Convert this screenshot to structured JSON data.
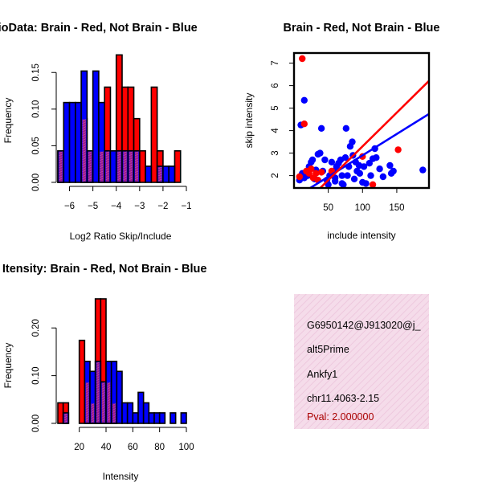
{
  "colors": {
    "brain": "#ff0000",
    "not_brain": "#0000ff",
    "overlap": "#9b1b8c",
    "info_bg": "#f5dcea",
    "pval": "#aa0000"
  },
  "chart_data": [
    {
      "id": "ratio",
      "type": "bar",
      "title": "RatioData: Brain - Red, Not Brain - Blue",
      "xlabel": "Log2 Ratio Skip/Include",
      "ylabel": "Frequency",
      "xlim": [
        -6.5,
        -1
      ],
      "ylim": [
        0,
        0.17
      ],
      "xticks": [
        -6,
        -5,
        -4,
        -3,
        -2,
        -1
      ],
      "xtick_labels": [
        "−6",
        "−5",
        "−4",
        "−3",
        "−2",
        "−1"
      ],
      "yticks": [
        0,
        0.05,
        0.1,
        0.15
      ],
      "ytick_labels": [
        "0.00",
        "0.05",
        "0.10",
        "0.15"
      ],
      "bin_width": 0.25,
      "series": [
        {
          "name": "Not Brain",
          "color": "#0000ff",
          "bins": [
            {
              "x0": -6.5,
              "v": 0.043
            },
            {
              "x0": -6.25,
              "v": 0.109
            },
            {
              "x0": -6.0,
              "v": 0.109
            },
            {
              "x0": -5.75,
              "v": 0.109
            },
            {
              "x0": -5.5,
              "v": 0.152
            },
            {
              "x0": -5.25,
              "v": 0.043
            },
            {
              "x0": -5.0,
              "v": 0.152
            },
            {
              "x0": -4.75,
              "v": 0.109
            },
            {
              "x0": -4.5,
              "v": 0.043
            },
            {
              "x0": -4.25,
              "v": 0.043
            },
            {
              "x0": -4.0,
              "v": 0.043
            },
            {
              "x0": -3.75,
              "v": 0.043
            },
            {
              "x0": -3.5,
              "v": 0.043
            },
            {
              "x0": -3.25,
              "v": 0.043
            },
            {
              "x0": -2.75,
              "v": 0.022
            },
            {
              "x0": -2.25,
              "v": 0.022
            },
            {
              "x0": -2.0,
              "v": 0.022
            },
            {
              "x0": -1.75,
              "v": 0.022
            }
          ]
        },
        {
          "name": "Brain",
          "color": "#ff0000",
          "bins": [
            {
              "x0": -6.5,
              "v": 0.043
            },
            {
              "x0": -5.5,
              "v": 0.087
            },
            {
              "x0": -5.25,
              "v": 0.043
            },
            {
              "x0": -4.75,
              "v": 0.043
            },
            {
              "x0": -4.5,
              "v": 0.13
            },
            {
              "x0": -4.0,
              "v": 0.174
            },
            {
              "x0": -3.75,
              "v": 0.13
            },
            {
              "x0": -3.5,
              "v": 0.13
            },
            {
              "x0": -3.25,
              "v": 0.087
            },
            {
              "x0": -3.0,
              "v": 0.043
            },
            {
              "x0": -2.5,
              "v": 0.13
            },
            {
              "x0": -2.25,
              "v": 0.043
            },
            {
              "x0": -1.5,
              "v": 0.043
            }
          ]
        }
      ]
    },
    {
      "id": "scatter",
      "type": "scatter",
      "title": "Brain - Red, Not Brain - Blue",
      "xlabel": "include intensity",
      "ylabel": "skip intensity",
      "xlim": [
        0,
        197
      ],
      "ylim": [
        1.45,
        7.45
      ],
      "xticks": [
        50,
        100,
        150
      ],
      "xtick_labels": [
        "50",
        "100",
        "150"
      ],
      "yticks": [
        2,
        3,
        4,
        5,
        6,
        7
      ],
      "ytick_labels": [
        "2",
        "3",
        "4",
        "5",
        "6",
        "7"
      ],
      "series": [
        {
          "name": "Not Brain",
          "color": "#0000ff",
          "fit_line": {
            "intercept": 1.0,
            "slope": 0.019
          },
          "points": [
            [
              8,
              1.8
            ],
            [
              12,
              2.1
            ],
            [
              15,
              1.9
            ],
            [
              10,
              4.25
            ],
            [
              15,
              5.35
            ],
            [
              20,
              2.0
            ],
            [
              22,
              2.4
            ],
            [
              25,
              2.6
            ],
            [
              27,
              2.7
            ],
            [
              30,
              1.85
            ],
            [
              32,
              2.25
            ],
            [
              35,
              2.95
            ],
            [
              38,
              3.0
            ],
            [
              40,
              4.1
            ],
            [
              42,
              2.2
            ],
            [
              45,
              2.7
            ],
            [
              48,
              1.8
            ],
            [
              50,
              1.6
            ],
            [
              52,
              2.0
            ],
            [
              55,
              2.6
            ],
            [
              58,
              2.2
            ],
            [
              60,
              1.9
            ],
            [
              62,
              2.4
            ],
            [
              65,
              2.55
            ],
            [
              68,
              2.7
            ],
            [
              70,
              2.0
            ],
            [
              72,
              1.6
            ],
            [
              75,
              2.8
            ],
            [
              76,
              4.1
            ],
            [
              78,
              2.0
            ],
            [
              80,
              2.4
            ],
            [
              82,
              3.3
            ],
            [
              85,
              3.5
            ],
            [
              86,
              2.9
            ],
            [
              88,
              1.85
            ],
            [
              90,
              2.6
            ],
            [
              92,
              2.2
            ],
            [
              95,
              2.45
            ],
            [
              96,
              2.1
            ],
            [
              100,
              1.7
            ],
            [
              102,
              2.4
            ],
            [
              105,
              1.65
            ],
            [
              110,
              2.55
            ],
            [
              112,
              2.0
            ],
            [
              115,
              2.75
            ],
            [
              118,
              3.2
            ],
            [
              120,
              2.8
            ],
            [
              125,
              2.3
            ],
            [
              130,
              1.95
            ],
            [
              140,
              2.45
            ],
            [
              142,
              2.1
            ],
            [
              145,
              2.2
            ],
            [
              188,
              2.25
            ],
            [
              70,
              1.65
            ],
            [
              60,
              1.75
            ]
          ]
        },
        {
          "name": "Brain",
          "color": "#ff0000",
          "fit_line": {
            "intercept": 0.3,
            "slope": 0.03
          },
          "points": [
            [
              12,
              7.2
            ],
            [
              15,
              4.3
            ],
            [
              8,
              1.95
            ],
            [
              18,
              2.2
            ],
            [
              22,
              2.1
            ],
            [
              25,
              2.3
            ],
            [
              28,
              1.9
            ],
            [
              32,
              2.1
            ],
            [
              35,
              1.8
            ],
            [
              40,
              2.15
            ],
            [
              55,
              2.2
            ],
            [
              100,
              2.85
            ],
            [
              115,
              1.6
            ],
            [
              152,
              3.15
            ]
          ]
        }
      ]
    },
    {
      "id": "intensity",
      "type": "bar",
      "title": "Gene Itensity: Brain - Red, Not Brain - Blue",
      "xlabel": "Intensity",
      "ylabel": "Frequency",
      "xlim": [
        4,
        100
      ],
      "ylim": [
        0,
        0.261
      ],
      "xticks": [
        20,
        40,
        60,
        80,
        100
      ],
      "xtick_labels": [
        "20",
        "40",
        "60",
        "80",
        "100"
      ],
      "yticks": [
        0,
        0.1,
        0.2
      ],
      "ytick_labels": [
        "0.00",
        "0.10",
        "0.20"
      ],
      "bin_width": 4,
      "series": [
        {
          "name": "Not Brain",
          "color": "#0000ff",
          "bins": [
            {
              "x0": 8,
              "v": 0.022
            },
            {
              "x0": 24,
              "v": 0.13
            },
            {
              "x0": 28,
              "v": 0.109
            },
            {
              "x0": 32,
              "v": 0.13
            },
            {
              "x0": 36,
              "v": 0.087
            },
            {
              "x0": 40,
              "v": 0.13
            },
            {
              "x0": 44,
              "v": 0.13
            },
            {
              "x0": 48,
              "v": 0.109
            },
            {
              "x0": 52,
              "v": 0.043
            },
            {
              "x0": 56,
              "v": 0.043
            },
            {
              "x0": 60,
              "v": 0.022
            },
            {
              "x0": 64,
              "v": 0.065
            },
            {
              "x0": 68,
              "v": 0.043
            },
            {
              "x0": 72,
              "v": 0.022
            },
            {
              "x0": 76,
              "v": 0.022
            },
            {
              "x0": 80,
              "v": 0.022
            },
            {
              "x0": 88,
              "v": 0.022
            },
            {
              "x0": 96,
              "v": 0.022
            }
          ]
        },
        {
          "name": "Brain",
          "color": "#ff0000",
          "bins": [
            {
              "x0": 4,
              "v": 0.043
            },
            {
              "x0": 8,
              "v": 0.043
            },
            {
              "x0": 20,
              "v": 0.174
            },
            {
              "x0": 24,
              "v": 0.087
            },
            {
              "x0": 28,
              "v": 0.043
            },
            {
              "x0": 32,
              "v": 0.261
            },
            {
              "x0": 36,
              "v": 0.261
            },
            {
              "x0": 40,
              "v": 0.087
            },
            {
              "x0": 44,
              "v": 0.043
            }
          ]
        }
      ]
    }
  ],
  "info_box": {
    "id": "G6950142@J913020@j_",
    "event_type": "alt5Prime",
    "gene": "Ankfy1",
    "location": "chr11.4063-2.15",
    "pval": "Pval: 2.000000"
  }
}
